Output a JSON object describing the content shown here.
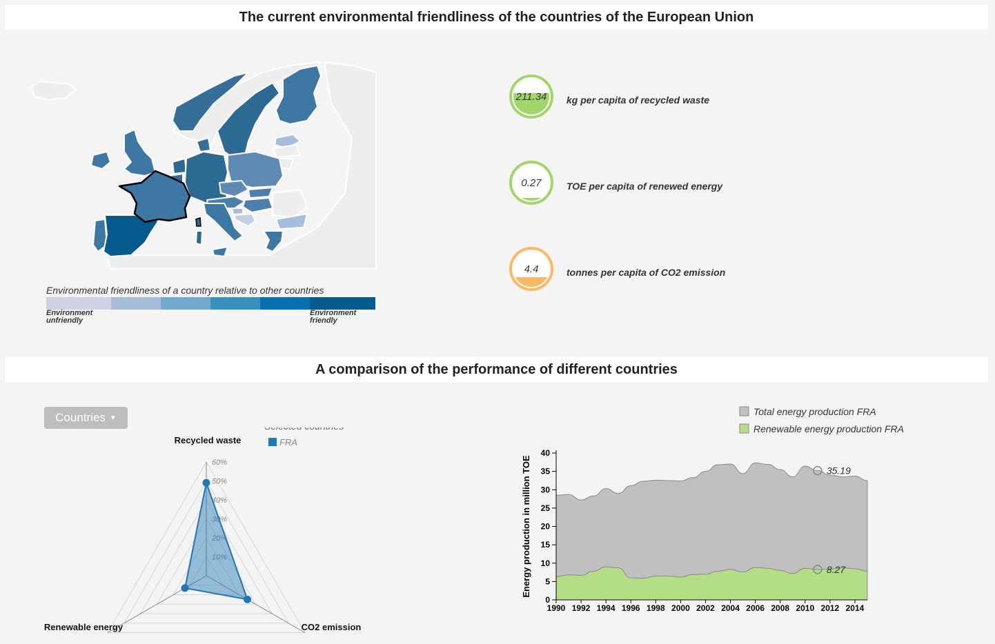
{
  "header": {
    "title_top": "The current environmental friendliness of the countries of the European Union",
    "title_bottom": "A comparison of the performance of different countries"
  },
  "legend": {
    "title": "Environmental friendliness of a country relative to other countries",
    "low_label_1": "Environment",
    "low_label_2": "unfriendly",
    "high_label_1": "Environment",
    "high_label_2": "friendly",
    "colors": [
      "#d0d1e6",
      "#a6bddb",
      "#74a9cf",
      "#3690c0",
      "#0570b0",
      "#045a8d"
    ]
  },
  "gauges": [
    {
      "value": "211.34",
      "label": "kg per capita of recycled waste",
      "color": "#a1d76a",
      "fill_fraction": 0.62
    },
    {
      "value": "0.27",
      "label": "TOE per capita of renewed energy",
      "color": "#a1d76a",
      "fill_fraction": 0.08
    },
    {
      "value": "4.4",
      "label": "tonnes per capita of CO2 emission",
      "color": "#fdb863",
      "fill_fraction": 0.35
    }
  ],
  "controls": {
    "countries_button": "Countries"
  },
  "radar": {
    "selected_title": "Selected countries",
    "selected_countries": [
      {
        "name": "FRA",
        "color": "#1f78b4"
      }
    ],
    "axes": [
      "Recycled waste",
      "CO2 emission",
      "Renewable energy"
    ],
    "tick_labels": [
      "10%",
      "20%",
      "30%",
      "40%",
      "50%",
      "60%"
    ],
    "max": 60,
    "series": [
      {
        "name": "FRA",
        "values": [
          49,
          25,
          13
        ]
      }
    ]
  },
  "chart_data": {
    "type": "area",
    "title": "",
    "xlabel": "",
    "ylabel": "Energy production in million TOE",
    "x_ticks": [
      "1990",
      "1992",
      "1994",
      "1996",
      "1998",
      "2000",
      "2002",
      "2004",
      "2006",
      "2008",
      "2010",
      "2012",
      "2014"
    ],
    "y_ticks": [
      "0",
      "5",
      "10",
      "15",
      "20",
      "25",
      "30",
      "35",
      "40"
    ],
    "xlim": [
      1990,
      2015
    ],
    "ylim": [
      0,
      40
    ],
    "x": [
      1990,
      1991,
      1992,
      1993,
      1994,
      1995,
      1996,
      1997,
      1998,
      1999,
      2000,
      2001,
      2002,
      2003,
      2004,
      2005,
      2006,
      2007,
      2008,
      2009,
      2010,
      2011,
      2012,
      2013,
      2014,
      2015
    ],
    "series": [
      {
        "name": "Total energy production FRA",
        "color": "#c0c0c0",
        "values": [
          28.5,
          28.7,
          27.2,
          28.3,
          30.3,
          29.0,
          31.1,
          32.3,
          32.6,
          32.5,
          32.4,
          33.3,
          35.0,
          36.8,
          37.0,
          34.4,
          37.3,
          36.9,
          35.5,
          33.5,
          36.4,
          35.2,
          34.0,
          33.5,
          33.7,
          32.5
        ]
      },
      {
        "name": "Renewable energy production FRA",
        "color": "#b3de85",
        "values": [
          6.3,
          6.8,
          6.7,
          7.8,
          9.0,
          8.7,
          6.0,
          5.9,
          6.5,
          6.5,
          6.2,
          6.9,
          7.0,
          7.8,
          8.3,
          7.6,
          8.8,
          8.6,
          8.0,
          7.2,
          8.6,
          8.27,
          8.4,
          8.7,
          8.5,
          7.8
        ]
      }
    ],
    "annotations": [
      {
        "x": 2011,
        "y": 35.19,
        "label": "35.19"
      },
      {
        "x": 2011,
        "y": 8.27,
        "label": "8.27"
      }
    ],
    "legend_position": "top"
  }
}
